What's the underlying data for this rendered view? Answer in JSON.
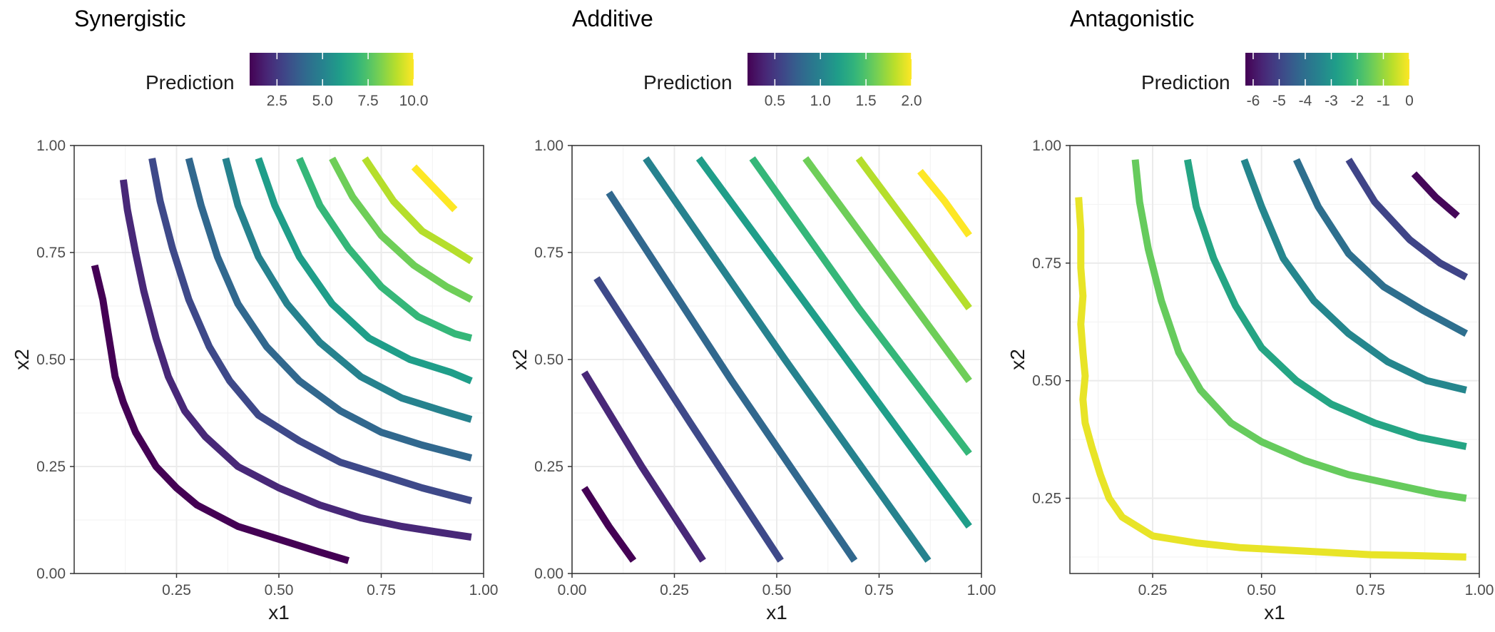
{
  "chart_data": [
    {
      "type": "line",
      "title": "Synergistic",
      "xlabel": "x1",
      "ylabel": "x2",
      "xlim": [
        0.0,
        1.0
      ],
      "ylim": [
        0.0,
        1.0
      ],
      "grid": true,
      "xticks": [
        0.25,
        0.5,
        0.75,
        1.0
      ],
      "xtick_labels": [
        "0.25",
        "0.50",
        "0.75",
        "1.00"
      ],
      "yticks": [
        0.0,
        0.25,
        0.5,
        0.75,
        1.0
      ],
      "ytick_labels": [
        "0.00",
        "0.25",
        "0.50",
        "0.75",
        "1.00"
      ],
      "legend": {
        "title": "Prediction",
        "position": "top",
        "range": [
          1.0,
          10.0
        ],
        "ticks": [
          2.5,
          5.0,
          7.5,
          10.0
        ],
        "tick_labels": [
          "2.5",
          "5.0",
          "7.5",
          "10.0"
        ]
      },
      "series": [
        {
          "level": 1,
          "x": [
            0.05,
            0.07,
            0.08,
            0.09,
            0.1,
            0.12,
            0.15,
            0.2,
            0.25,
            0.3,
            0.4,
            0.5,
            0.6,
            0.67
          ],
          "y": [
            0.72,
            0.64,
            0.58,
            0.52,
            0.46,
            0.4,
            0.33,
            0.25,
            0.2,
            0.16,
            0.11,
            0.08,
            0.05,
            0.03
          ]
        },
        {
          "level": 2,
          "x": [
            0.12,
            0.13,
            0.15,
            0.17,
            0.2,
            0.23,
            0.27,
            0.32,
            0.4,
            0.5,
            0.6,
            0.7,
            0.8,
            0.9,
            0.97
          ],
          "y": [
            0.92,
            0.85,
            0.75,
            0.66,
            0.55,
            0.46,
            0.38,
            0.32,
            0.25,
            0.2,
            0.16,
            0.13,
            0.11,
            0.095,
            0.085
          ]
        },
        {
          "level": 3,
          "x": [
            0.19,
            0.21,
            0.24,
            0.28,
            0.33,
            0.38,
            0.45,
            0.55,
            0.65,
            0.75,
            0.85,
            0.97
          ],
          "y": [
            0.97,
            0.87,
            0.76,
            0.64,
            0.53,
            0.45,
            0.37,
            0.31,
            0.26,
            0.23,
            0.2,
            0.17
          ]
        },
        {
          "level": 4,
          "x": [
            0.28,
            0.31,
            0.35,
            0.4,
            0.47,
            0.55,
            0.65,
            0.75,
            0.85,
            0.97
          ],
          "y": [
            0.97,
            0.86,
            0.74,
            0.63,
            0.53,
            0.45,
            0.38,
            0.33,
            0.3,
            0.27
          ]
        },
        {
          "level": 5,
          "x": [
            0.37,
            0.4,
            0.45,
            0.52,
            0.6,
            0.7,
            0.8,
            0.9,
            0.97
          ],
          "y": [
            0.97,
            0.86,
            0.74,
            0.63,
            0.54,
            0.46,
            0.41,
            0.38,
            0.36
          ]
        },
        {
          "level": 6,
          "x": [
            0.45,
            0.49,
            0.55,
            0.63,
            0.72,
            0.82,
            0.92,
            0.97
          ],
          "y": [
            0.97,
            0.86,
            0.74,
            0.63,
            0.55,
            0.5,
            0.47,
            0.45
          ]
        },
        {
          "level": 7,
          "x": [
            0.55,
            0.6,
            0.67,
            0.75,
            0.84,
            0.93,
            0.97
          ],
          "y": [
            0.97,
            0.86,
            0.76,
            0.67,
            0.6,
            0.56,
            0.55
          ]
        },
        {
          "level": 8,
          "x": [
            0.63,
            0.68,
            0.75,
            0.83,
            0.91,
            0.97
          ],
          "y": [
            0.97,
            0.88,
            0.79,
            0.72,
            0.67,
            0.64
          ]
        },
        {
          "level": 9,
          "x": [
            0.71,
            0.78,
            0.85,
            0.92,
            0.97
          ],
          "y": [
            0.97,
            0.87,
            0.8,
            0.76,
            0.73
          ]
        },
        {
          "level": 10,
          "x": [
            0.83,
            0.88,
            0.93
          ],
          "y": [
            0.95,
            0.9,
            0.85
          ]
        }
      ]
    },
    {
      "type": "line",
      "title": "Additive",
      "xlabel": "x1",
      "ylabel": "x2",
      "xlim": [
        0.0,
        1.0
      ],
      "ylim": [
        0.0,
        1.0
      ],
      "grid": true,
      "xticks": [
        0.0,
        0.25,
        0.5,
        0.75,
        1.0
      ],
      "xtick_labels": [
        "0.00",
        "0.25",
        "0.50",
        "0.75",
        "1.00"
      ],
      "yticks": [
        0.0,
        0.25,
        0.5,
        0.75,
        1.0
      ],
      "ytick_labels": [
        "0.00",
        "0.25",
        "0.50",
        "0.75",
        "1.00"
      ],
      "legend": {
        "title": "Prediction",
        "position": "top",
        "range": [
          0.2,
          2.0
        ],
        "ticks": [
          0.5,
          1.0,
          1.5,
          2.0
        ],
        "tick_labels": [
          "0.5",
          "1.0",
          "1.5",
          "2.0"
        ]
      },
      "series": [
        {
          "level": 0.2,
          "x": [
            0.03,
            0.09,
            0.15
          ],
          "y": [
            0.2,
            0.11,
            0.03
          ]
        },
        {
          "level": 0.4,
          "x": [
            0.03,
            0.17,
            0.32
          ],
          "y": [
            0.47,
            0.25,
            0.03
          ]
        },
        {
          "level": 0.6,
          "x": [
            0.06,
            0.29,
            0.51
          ],
          "y": [
            0.69,
            0.35,
            0.03
          ]
        },
        {
          "level": 0.8,
          "x": [
            0.09,
            0.39,
            0.69
          ],
          "y": [
            0.89,
            0.45,
            0.03
          ]
        },
        {
          "level": 1.0,
          "x": [
            0.18,
            0.52,
            0.87
          ],
          "y": [
            0.97,
            0.5,
            0.03
          ]
        },
        {
          "level": 1.2,
          "x": [
            0.31,
            0.64,
            0.97
          ],
          "y": [
            0.97,
            0.54,
            0.11
          ]
        },
        {
          "level": 1.4,
          "x": [
            0.44,
            0.7,
            0.97
          ],
          "y": [
            0.97,
            0.62,
            0.28
          ]
        },
        {
          "level": 1.6,
          "x": [
            0.57,
            0.77,
            0.97
          ],
          "y": [
            0.97,
            0.71,
            0.45
          ]
        },
        {
          "level": 1.8,
          "x": [
            0.7,
            0.84,
            0.97
          ],
          "y": [
            0.97,
            0.79,
            0.62
          ]
        },
        {
          "level": 2.0,
          "x": [
            0.85,
            0.91,
            0.97
          ],
          "y": [
            0.94,
            0.87,
            0.79
          ]
        }
      ]
    },
    {
      "type": "line",
      "title": "Antagonistic",
      "xlabel": "x1",
      "ylabel": "x2",
      "xlim": [
        0.06,
        1.0
      ],
      "ylim": [
        0.09,
        1.0
      ],
      "grid": true,
      "xticks": [
        0.25,
        0.5,
        0.75,
        1.0
      ],
      "xtick_labels": [
        "0.25",
        "0.50",
        "0.75",
        "1.00"
      ],
      "yticks": [
        0.25,
        0.5,
        0.75,
        1.0
      ],
      "ytick_labels": [
        "0.25",
        "0.50",
        "0.75",
        "1.00"
      ],
      "legend": {
        "title": "Prediction",
        "position": "top",
        "range": [
          -6.3,
          0.0
        ],
        "ticks": [
          -6,
          -5,
          -4,
          -3,
          -2,
          -1,
          0
        ],
        "tick_labels": [
          "-6",
          "-5",
          "-4",
          "-3",
          "-2",
          "-1",
          "0"
        ]
      },
      "series": [
        {
          "level": -0.2,
          "x": [
            0.08,
            0.085,
            0.085,
            0.09,
            0.085,
            0.09,
            0.095,
            0.09,
            0.095,
            0.11,
            0.13,
            0.15,
            0.18,
            0.25,
            0.35,
            0.45,
            0.55,
            0.65,
            0.75,
            0.85,
            0.97
          ],
          "y": [
            0.89,
            0.82,
            0.74,
            0.68,
            0.62,
            0.56,
            0.51,
            0.46,
            0.41,
            0.36,
            0.3,
            0.25,
            0.21,
            0.17,
            0.155,
            0.145,
            0.14,
            0.135,
            0.13,
            0.128,
            0.125
          ]
        },
        {
          "level": -1.5,
          "x": [
            0.21,
            0.22,
            0.24,
            0.27,
            0.31,
            0.36,
            0.43,
            0.5,
            0.6,
            0.7,
            0.8,
            0.9,
            0.97
          ],
          "y": [
            0.97,
            0.88,
            0.78,
            0.67,
            0.56,
            0.48,
            0.41,
            0.37,
            0.33,
            0.3,
            0.28,
            0.26,
            0.25
          ]
        },
        {
          "level": -2.6,
          "x": [
            0.33,
            0.35,
            0.39,
            0.44,
            0.5,
            0.58,
            0.66,
            0.76,
            0.86,
            0.97
          ],
          "y": [
            0.97,
            0.87,
            0.76,
            0.66,
            0.57,
            0.5,
            0.45,
            0.41,
            0.38,
            0.36
          ]
        },
        {
          "level": -3.4,
          "x": [
            0.46,
            0.5,
            0.55,
            0.62,
            0.7,
            0.79,
            0.88,
            0.97
          ],
          "y": [
            0.97,
            0.87,
            0.76,
            0.67,
            0.6,
            0.54,
            0.5,
            0.48
          ]
        },
        {
          "level": -4.0,
          "x": [
            0.58,
            0.63,
            0.7,
            0.78,
            0.87,
            0.97
          ],
          "y": [
            0.97,
            0.87,
            0.77,
            0.7,
            0.65,
            0.6
          ]
        },
        {
          "level": -5.0,
          "x": [
            0.7,
            0.76,
            0.84,
            0.91,
            0.97
          ],
          "y": [
            0.97,
            0.88,
            0.8,
            0.75,
            0.72
          ]
        },
        {
          "level": -6.2,
          "x": [
            0.85,
            0.9,
            0.95
          ],
          "y": [
            0.94,
            0.89,
            0.85
          ]
        }
      ]
    }
  ]
}
